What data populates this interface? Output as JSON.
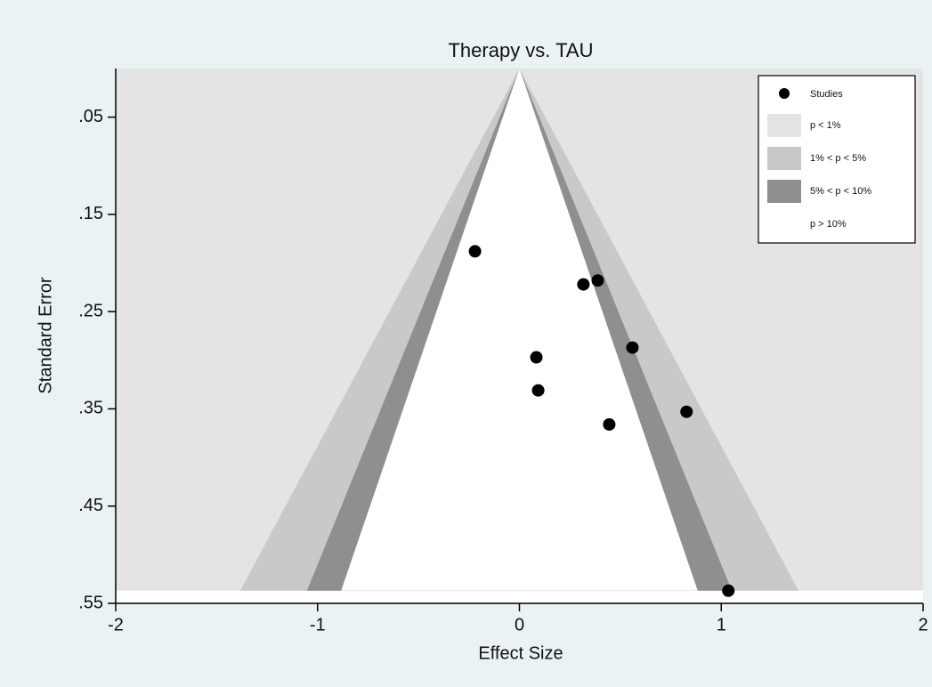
{
  "chart_data": {
    "type": "funnel",
    "title": "Therapy vs. TAU",
    "xlabel": "Effect Size",
    "ylabel": "Standard Error",
    "xlim": [
      -2,
      2
    ],
    "xticks": [
      -2,
      -1,
      0,
      1,
      2
    ],
    "ylim": [
      0,
      0.55
    ],
    "y_reversed": true,
    "yticks": [
      {
        "value": 0.05,
        "label": ".05"
      },
      {
        "value": 0.15,
        "label": ".15"
      },
      {
        "value": 0.25,
        "label": ".25"
      },
      {
        "value": 0.35,
        "label": ".35"
      },
      {
        "value": 0.45,
        "label": ".45"
      },
      {
        "value": 0.55,
        "label": ".55"
      }
    ],
    "series": [
      {
        "name": "Studies",
        "color": "#000000",
        "x": [
          -0.22,
          0.317,
          0.388,
          0.56,
          0.084,
          0.093,
          0.828,
          0.445,
          1.035
        ],
        "values": [
          0.188,
          0.222,
          0.218,
          0.287,
          0.297,
          0.331,
          0.353,
          0.366,
          0.537
        ]
      }
    ],
    "contour_levels": [
      1,
      5,
      10
    ],
    "contours": [
      {
        "name": "p < 1%",
        "color": "#e4e4e4"
      },
      {
        "name": "1% < p < 5%",
        "color": "#c9c9c9"
      },
      {
        "name": "5% < p < 10%",
        "color": "#8f8f8f"
      },
      {
        "name": "p > 10%",
        "color": "#ffffff"
      }
    ],
    "legend": "top-right"
  }
}
